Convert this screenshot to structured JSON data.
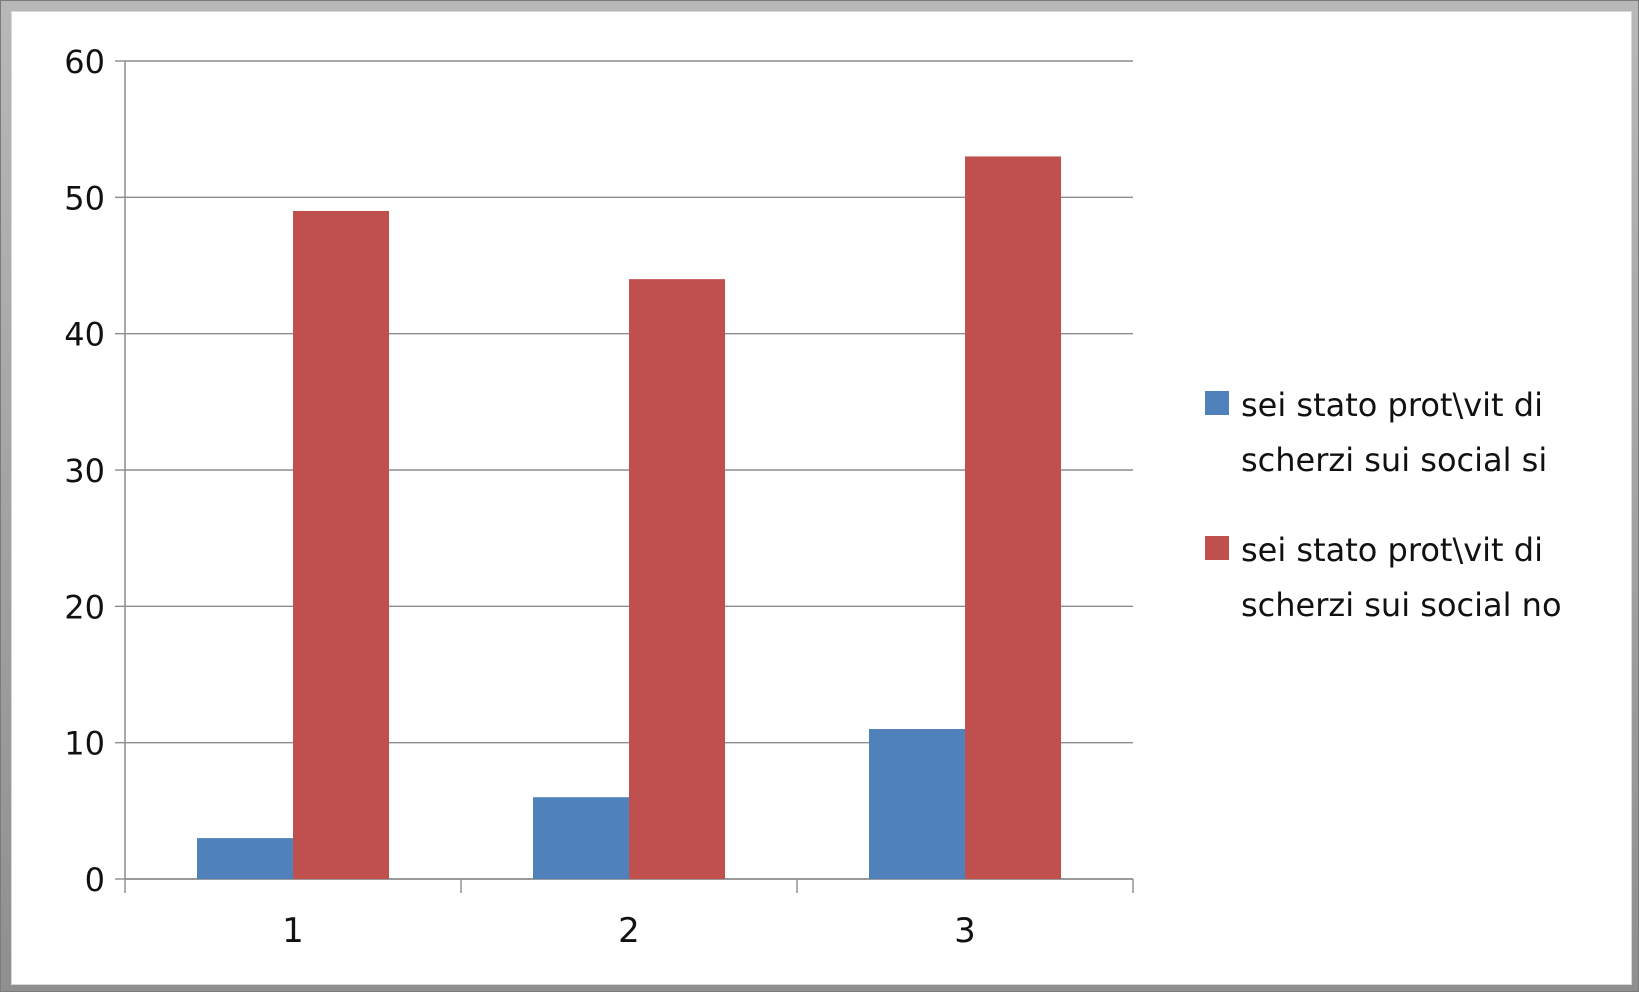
{
  "chart_data": {
    "type": "bar",
    "categories": [
      "1",
      "2",
      "3"
    ],
    "series": [
      {
        "name": "sei stato prot\\vit di scherzi sui social si",
        "values": [
          3,
          6,
          11
        ],
        "color": "#4f81bd"
      },
      {
        "name": "sei stato prot\\vit di scherzi sui social no",
        "values": [
          49,
          44,
          53
        ],
        "color": "#c0504d"
      }
    ],
    "ylim": [
      0,
      60
    ],
    "yticks": [
      0,
      10,
      20,
      30,
      40,
      50,
      60
    ],
    "grid": true,
    "legend_position": "right",
    "legend": [
      {
        "lines": [
          "sei stato prot\\vit di",
          "scherzi sui social si"
        ],
        "color": "#4f81bd"
      },
      {
        "lines": [
          "sei stato prot\\vit di",
          "scherzi sui social no"
        ],
        "color": "#c0504d"
      }
    ]
  }
}
